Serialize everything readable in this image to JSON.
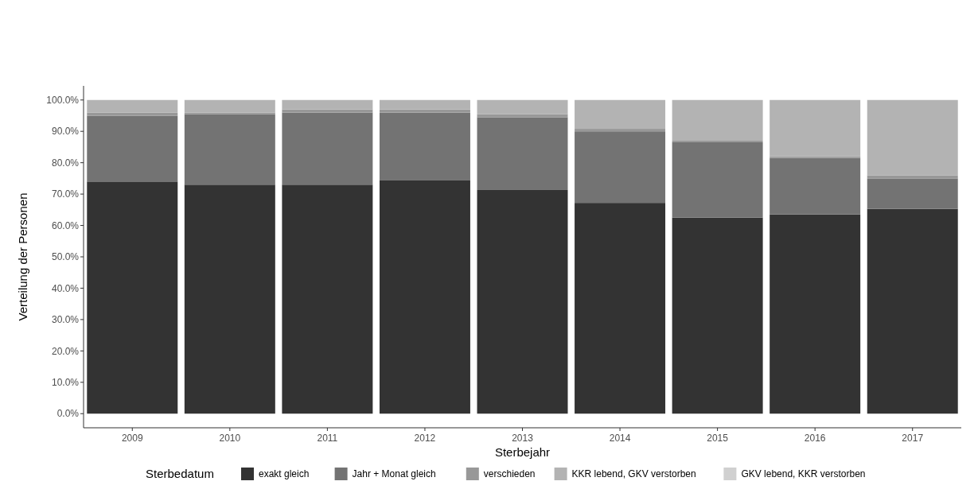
{
  "chart_data": {
    "type": "bar",
    "stacked": true,
    "xlabel": "Sterbejahr",
    "ylabel": "Verteilung der Personen",
    "legend_title": "Sterbedatum",
    "legend": "bottom",
    "grid": false,
    "categories": [
      "2009",
      "2010",
      "2011",
      "2012",
      "2013",
      "2014",
      "2015",
      "2016",
      "2017"
    ],
    "ylim": [
      -4.5,
      104.5
    ],
    "yticks": [
      {
        "value": 0,
        "label": "0.0%"
      },
      {
        "value": 10,
        "label": "10.0%"
      },
      {
        "value": 20,
        "label": "20.0%"
      },
      {
        "value": 30,
        "label": "30.0%"
      },
      {
        "value": 40,
        "label": "40.0%"
      },
      {
        "value": 50,
        "label": "50.0%"
      },
      {
        "value": 60,
        "label": "60.0%"
      },
      {
        "value": 70,
        "label": "70.0%"
      },
      {
        "value": 80,
        "label": "80.0%"
      },
      {
        "value": 90,
        "label": "90.0%"
      },
      {
        "value": 100,
        "label": "100.0%"
      }
    ],
    "series": [
      {
        "name": "exakt gleich",
        "color": "#333333",
        "values": [
          74,
          73,
          73,
          74.5,
          71.3,
          67.2,
          62.5,
          63.5,
          65.3
        ]
      },
      {
        "name": "Jahr + Monat gleich",
        "color": "#737373",
        "values": [
          21,
          22.5,
          23,
          21.5,
          23.2,
          22.8,
          24,
          18,
          9.7
        ]
      },
      {
        "name": "verschieden",
        "color": "#989898",
        "values": [
          1,
          0.5,
          1,
          1,
          1,
          0.8,
          0.5,
          0.5,
          1
        ]
      },
      {
        "name": "KKR lebend, GKV verstorben",
        "color": "#b3b3b3",
        "values": [
          4,
          4,
          3,
          3,
          4.5,
          9.2,
          13,
          18,
          24
        ]
      },
      {
        "name": "GKV lebend, KKR verstorben",
        "color": "#d0d0d0",
        "values": [
          0,
          0,
          0,
          0,
          0,
          0,
          0,
          0,
          0
        ]
      }
    ]
  }
}
